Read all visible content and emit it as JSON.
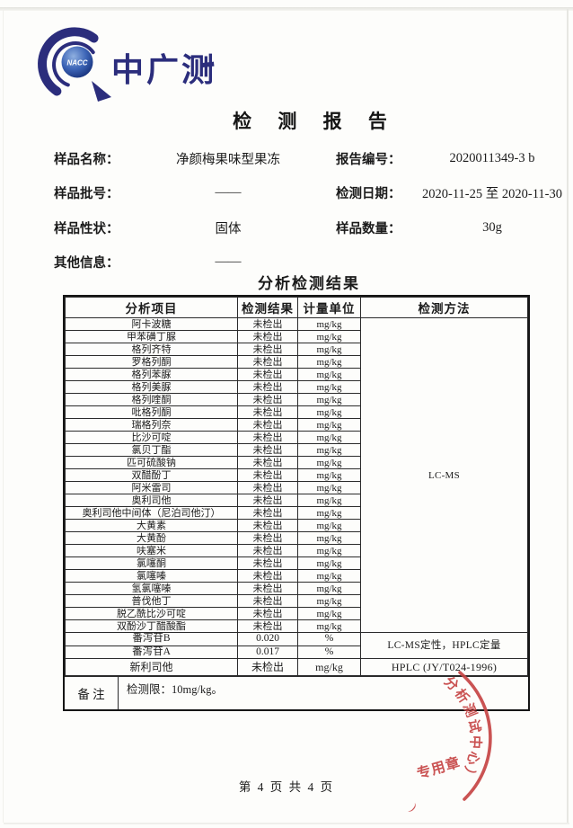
{
  "page": {
    "logo": {
      "badge": "NACC",
      "org_name": "中广测",
      "navy": "#2b2d7c"
    },
    "title": "检 测 报 告",
    "info": {
      "rows": [
        {
          "left_label": "样品名称：",
          "left_value": "净颜梅果味型果冻",
          "right_label": "报告编号：",
          "right_value": "2020011349-3  b"
        },
        {
          "left_label": "样品批号：",
          "left_value": "——",
          "right_label": "检测日期：",
          "right_value": "2020-11-25  至 2020-11-30"
        },
        {
          "left_label": "样品性状：",
          "left_value": "固体",
          "right_label": "样品数量：",
          "right_value": "30g"
        },
        {
          "left_label": "其他信息：",
          "left_value": "——",
          "right_label": "",
          "right_value": ""
        }
      ]
    },
    "section_title": "分析检测结果",
    "table": {
      "headers": [
        "分析项目",
        "检测结果",
        "计量单位",
        "检测方法"
      ],
      "rows": [
        {
          "item": "阿卡波糖",
          "result": "未检出",
          "unit": "mg/kg"
        },
        {
          "item": "甲苯磺丁脲",
          "result": "未检出",
          "unit": "mg/kg"
        },
        {
          "item": "格列齐特",
          "result": "未检出",
          "unit": "mg/kg"
        },
        {
          "item": "罗格列酮",
          "result": "未检出",
          "unit": "mg/kg"
        },
        {
          "item": "格列苯脲",
          "result": "未检出",
          "unit": "mg/kg"
        },
        {
          "item": "格列美脲",
          "result": "未检出",
          "unit": "mg/kg"
        },
        {
          "item": "格列喹酮",
          "result": "未检出",
          "unit": "mg/kg"
        },
        {
          "item": "吡格列酮",
          "result": "未检出",
          "unit": "mg/kg"
        },
        {
          "item": "瑞格列奈",
          "result": "未检出",
          "unit": "mg/kg"
        },
        {
          "item": "比沙可啶",
          "result": "未检出",
          "unit": "mg/kg"
        },
        {
          "item": "氯贝丁酯",
          "result": "未检出",
          "unit": "mg/kg"
        },
        {
          "item": "匹可硫酸钠",
          "result": "未检出",
          "unit": "mg/kg"
        },
        {
          "item": "双醋酚丁",
          "result": "未检出",
          "unit": "mg/kg"
        },
        {
          "item": "阿米雷司",
          "result": "未检出",
          "unit": "mg/kg"
        },
        {
          "item": "奥利司他",
          "result": "未检出",
          "unit": "mg/kg"
        },
        {
          "item": "奥利司他中间体（尼泊司他汀）",
          "result": "未检出",
          "unit": "mg/kg"
        },
        {
          "item": "大黄素",
          "result": "未检出",
          "unit": "mg/kg"
        },
        {
          "item": "大黄酚",
          "result": "未检出",
          "unit": "mg/kg"
        },
        {
          "item": "呋塞米",
          "result": "未检出",
          "unit": "mg/kg"
        },
        {
          "item": "氯噻酮",
          "result": "未检出",
          "unit": "mg/kg"
        },
        {
          "item": "氯噻嗪",
          "result": "未检出",
          "unit": "mg/kg"
        },
        {
          "item": "氢氯噻嗪",
          "result": "未检出",
          "unit": "mg/kg"
        },
        {
          "item": "普伐他丁",
          "result": "未检出",
          "unit": "mg/kg"
        },
        {
          "item": "脱乙酰比沙可啶",
          "result": "未检出",
          "unit": "mg/kg"
        },
        {
          "item": "双酚沙丁醋酸酯",
          "result": "未检出",
          "unit": "mg/kg"
        },
        {
          "item": "番泻苷B",
          "result": "0.020",
          "unit": "%"
        },
        {
          "item": "番泻苷A",
          "result": "0.017",
          "unit": "%"
        },
        {
          "item": "新利司他",
          "result": "未检出",
          "unit": "mg/kg"
        }
      ],
      "method_groups": [
        {
          "label": "LC-MS",
          "row_start": 0,
          "row_count": 25
        },
        {
          "label": "LC-MS定性，HPLC定量",
          "row_start": 25,
          "row_count": 2
        },
        {
          "label": "HPLC (JY/T024-1996)",
          "row_start": 27,
          "row_count": 1
        }
      ],
      "remark_label": "备 注",
      "remark_text": "检测限：10mg/kg。"
    },
    "footer": {
      "page_text": "第 4 页 共 4 页"
    },
    "stamp": {
      "arc_text": "分析测试中心）",
      "label": "专用章",
      "color": "#c64545"
    }
  }
}
